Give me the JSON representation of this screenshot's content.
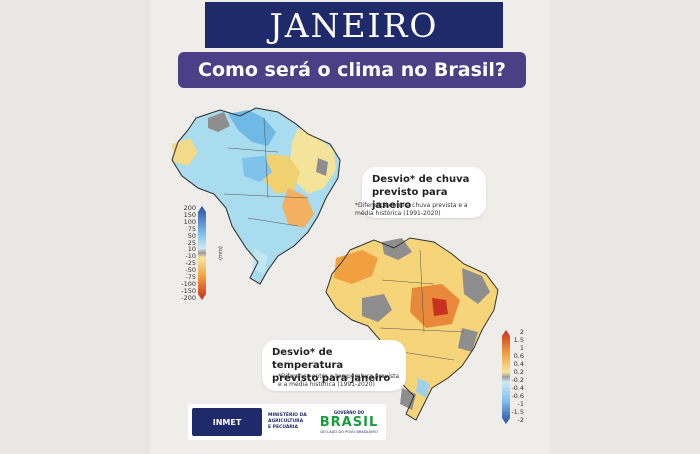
{
  "header": {
    "title": "JANEIRO",
    "subtitle": "Como será o clima no Brasil?"
  },
  "rain_map": {
    "label_line1": "Desvio* de chuva",
    "label_line2": "previsto para janeiro",
    "note_line1": "*Diferença entre a chuva prevista e a",
    "note_line2": "média histórica (1991-2020)",
    "legend_ticks": [
      "200",
      "150",
      "100",
      "75",
      "50",
      "25",
      "10",
      "-10",
      "-25",
      "-50",
      "-75",
      "-100",
      "-150",
      "-200"
    ],
    "unit": "(mm)"
  },
  "temp_map": {
    "label_line1": "Desvio* de temperatura",
    "label_line2": "previsto para janeiro",
    "note_line1": "*Diferença entre a temperatura prevista",
    "note_line2": "e a média histórica (1991-2020)",
    "legend_ticks": [
      "2",
      "1.5",
      "1",
      "0.6",
      "0.4",
      "0.2",
      "-0.2",
      "-0.4",
      "-0.6",
      "-1",
      "-1.5",
      "-2"
    ]
  },
  "footer": {
    "inmet": "INMET",
    "ministry_line1": "MINISTÉRIO DA",
    "ministry_line2": "AGRICULTURA",
    "ministry_line3": "E PECUÁRIA",
    "gov_top": "GOVERNO DO",
    "gov_main": "BRASIL",
    "gov_sub": "DO LADO DO POVO BRASILEIRO"
  }
}
